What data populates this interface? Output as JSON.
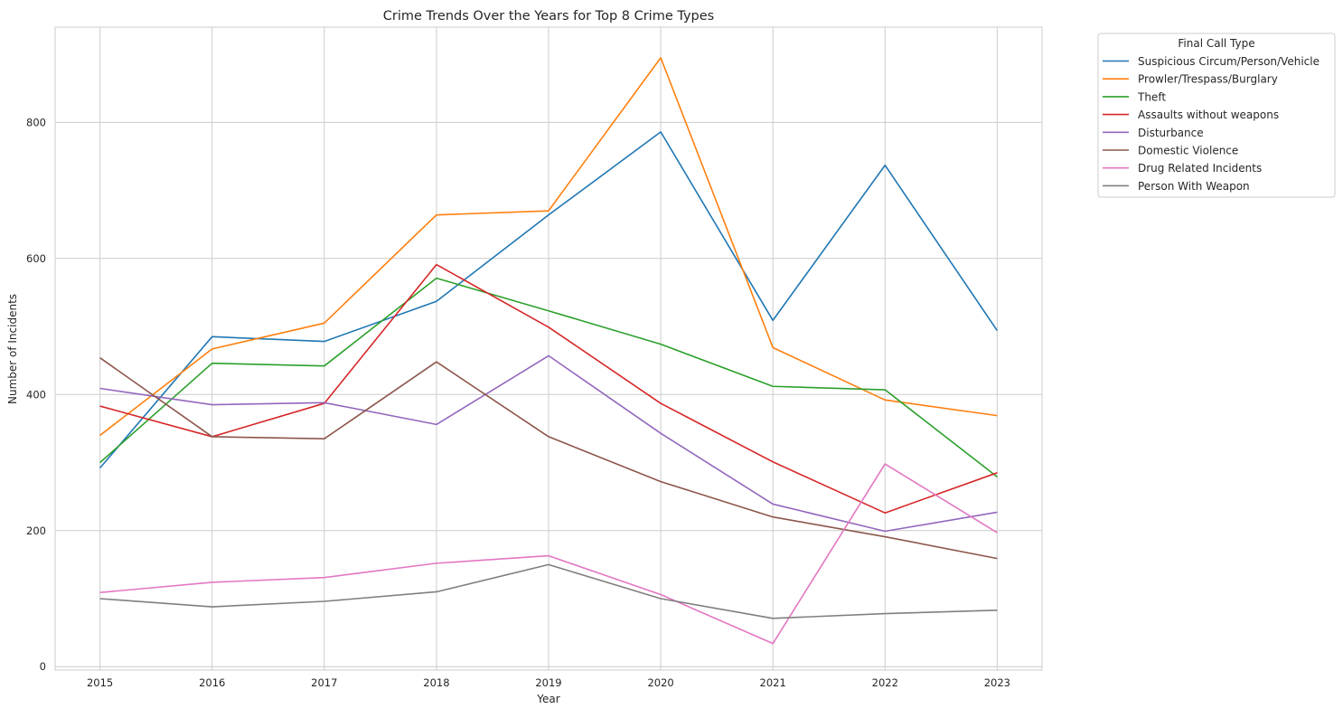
{
  "chart_data": {
    "type": "line",
    "title": "Crime Trends Over the Years for Top 8 Crime Types",
    "xlabel": "Year",
    "ylabel": "Number of Incidents",
    "x": [
      2015,
      2016,
      2017,
      2018,
      2019,
      2020,
      2021,
      2022,
      2023
    ],
    "x_ticks": [
      "2015",
      "2016",
      "2017",
      "2018",
      "2019",
      "2020",
      "2021",
      "2022",
      "2023"
    ],
    "y_ticks": [
      "0",
      "200",
      "400",
      "600",
      "800"
    ],
    "ylim": [
      -5,
      940
    ],
    "grid": true,
    "legend_title": "Final Call Type",
    "legend_position": "outside-top-right",
    "series": [
      {
        "name": "Suspicious Circum/Person/Vehicle",
        "color": "#1f77b4",
        "values": [
          292,
          485,
          478,
          537,
          664,
          786,
          509,
          737,
          494
        ]
      },
      {
        "name": "Prowler/Trespass/Burglary",
        "color": "#ff7f0e",
        "values": [
          340,
          467,
          505,
          664,
          670,
          895,
          469,
          392,
          369
        ]
      },
      {
        "name": "Theft",
        "color": "#2ca02c",
        "values": [
          300,
          446,
          442,
          571,
          523,
          474,
          412,
          407,
          279
        ]
      },
      {
        "name": "Assaults without weapons",
        "color": "#d62728",
        "values": [
          383,
          338,
          387,
          591,
          499,
          387,
          301,
          226,
          285
        ]
      },
      {
        "name": "Disturbance",
        "color": "#9467bd",
        "values": [
          409,
          385,
          388,
          356,
          457,
          343,
          239,
          199,
          227
        ]
      },
      {
        "name": "Domestic Violence",
        "color": "#8c564b",
        "values": [
          454,
          338,
          335,
          448,
          338,
          272,
          220,
          191,
          159
        ]
      },
      {
        "name": "Drug Related Incidents",
        "color": "#e377c2",
        "values": [
          109,
          124,
          131,
          152,
          163,
          106,
          34,
          298,
          197
        ]
      },
      {
        "name": "Person With Weapon",
        "color": "#7f7f7f",
        "values": [
          100,
          88,
          96,
          110,
          150,
          100,
          71,
          78,
          83
        ]
      }
    ]
  }
}
